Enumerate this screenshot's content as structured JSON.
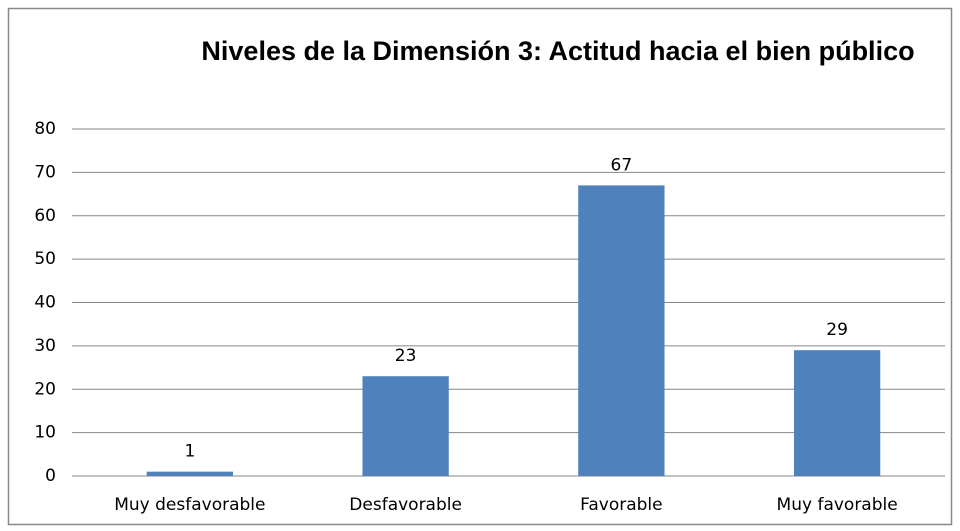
{
  "chart_data": {
    "type": "bar",
    "title": "Niveles de la Dimensión 3: Actitud hacia el bien público",
    "categories": [
      "Muy desfavorable",
      "Desfavorable",
      "Favorable",
      "Muy favorable"
    ],
    "values": [
      1,
      23,
      67,
      29
    ],
    "color": "#4f81bd",
    "ylim": [
      0,
      80
    ],
    "yticks": [
      0,
      10,
      20,
      30,
      40,
      50,
      60,
      70,
      80
    ],
    "grid": true
  }
}
